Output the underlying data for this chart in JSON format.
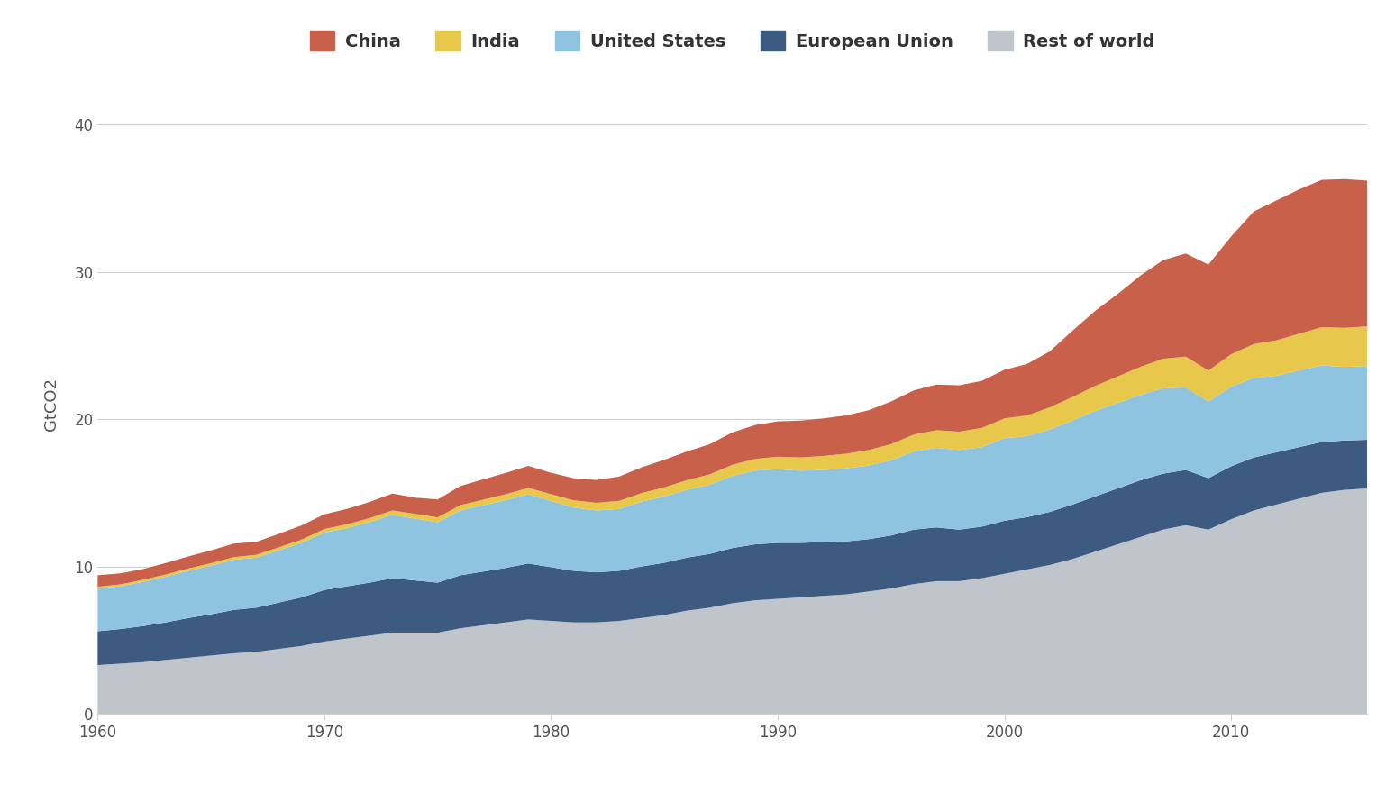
{
  "years": [
    1960,
    1961,
    1962,
    1963,
    1964,
    1965,
    1966,
    1967,
    1968,
    1969,
    1970,
    1971,
    1972,
    1973,
    1974,
    1975,
    1976,
    1977,
    1978,
    1979,
    1980,
    1981,
    1982,
    1983,
    1984,
    1985,
    1986,
    1987,
    1988,
    1989,
    1990,
    1991,
    1992,
    1993,
    1994,
    1995,
    1996,
    1997,
    1998,
    1999,
    2000,
    2001,
    2002,
    2003,
    2004,
    2005,
    2006,
    2007,
    2008,
    2009,
    2010,
    2011,
    2012,
    2013,
    2014,
    2015,
    2016
  ],
  "rest_of_world": [
    3.3,
    3.4,
    3.5,
    3.65,
    3.8,
    3.95,
    4.1,
    4.2,
    4.4,
    4.6,
    4.9,
    5.1,
    5.3,
    5.5,
    5.5,
    5.5,
    5.8,
    6.0,
    6.2,
    6.4,
    6.3,
    6.2,
    6.2,
    6.3,
    6.5,
    6.7,
    7.0,
    7.2,
    7.5,
    7.7,
    7.8,
    7.9,
    8.0,
    8.1,
    8.3,
    8.5,
    8.8,
    9.0,
    9.0,
    9.2,
    9.5,
    9.8,
    10.1,
    10.5,
    11.0,
    11.5,
    12.0,
    12.5,
    12.8,
    12.5,
    13.2,
    13.8,
    14.2,
    14.6,
    15.0,
    15.2,
    15.3
  ],
  "european_union": [
    2.3,
    2.35,
    2.45,
    2.55,
    2.7,
    2.8,
    2.95,
    3.0,
    3.15,
    3.3,
    3.5,
    3.55,
    3.6,
    3.7,
    3.55,
    3.4,
    3.6,
    3.65,
    3.7,
    3.8,
    3.65,
    3.5,
    3.4,
    3.4,
    3.5,
    3.55,
    3.6,
    3.65,
    3.75,
    3.8,
    3.8,
    3.7,
    3.65,
    3.6,
    3.55,
    3.6,
    3.7,
    3.65,
    3.5,
    3.5,
    3.6,
    3.55,
    3.6,
    3.7,
    3.75,
    3.8,
    3.85,
    3.8,
    3.75,
    3.5,
    3.6,
    3.6,
    3.55,
    3.5,
    3.45,
    3.35,
    3.3
  ],
  "united_states": [
    2.9,
    2.9,
    3.0,
    3.1,
    3.2,
    3.3,
    3.4,
    3.4,
    3.55,
    3.7,
    3.9,
    3.95,
    4.1,
    4.3,
    4.2,
    4.1,
    4.4,
    4.5,
    4.6,
    4.7,
    4.5,
    4.3,
    4.2,
    4.2,
    4.4,
    4.5,
    4.6,
    4.7,
    4.9,
    5.0,
    5.0,
    4.9,
    4.9,
    4.95,
    5.0,
    5.1,
    5.3,
    5.4,
    5.4,
    5.4,
    5.6,
    5.5,
    5.6,
    5.7,
    5.8,
    5.8,
    5.8,
    5.8,
    5.6,
    5.2,
    5.4,
    5.4,
    5.2,
    5.2,
    5.2,
    5.0,
    5.0
  ],
  "india": [
    0.12,
    0.13,
    0.14,
    0.15,
    0.16,
    0.17,
    0.18,
    0.19,
    0.2,
    0.22,
    0.24,
    0.26,
    0.28,
    0.3,
    0.32,
    0.33,
    0.36,
    0.38,
    0.4,
    0.43,
    0.46,
    0.49,
    0.52,
    0.55,
    0.58,
    0.62,
    0.66,
    0.7,
    0.75,
    0.8,
    0.85,
    0.9,
    0.95,
    1.0,
    1.05,
    1.1,
    1.15,
    1.2,
    1.25,
    1.3,
    1.35,
    1.4,
    1.5,
    1.6,
    1.7,
    1.8,
    1.9,
    2.0,
    2.1,
    2.1,
    2.2,
    2.3,
    2.4,
    2.5,
    2.6,
    2.65,
    2.7
  ],
  "china": [
    0.78,
    0.75,
    0.73,
    0.78,
    0.82,
    0.87,
    0.92,
    0.88,
    0.92,
    0.97,
    1.0,
    1.05,
    1.1,
    1.15,
    1.1,
    1.22,
    1.3,
    1.38,
    1.45,
    1.5,
    1.45,
    1.5,
    1.55,
    1.65,
    1.75,
    1.87,
    1.95,
    2.05,
    2.2,
    2.3,
    2.4,
    2.5,
    2.55,
    2.6,
    2.7,
    2.9,
    3.0,
    3.1,
    3.15,
    3.2,
    3.3,
    3.5,
    3.8,
    4.5,
    5.1,
    5.6,
    6.2,
    6.7,
    7.0,
    7.2,
    8.0,
    9.0,
    9.5,
    9.8,
    10.0,
    10.1,
    9.9
  ],
  "colors": {
    "china": "#c9614a",
    "india": "#e8c84a",
    "united_states": "#8ec4e0",
    "european_union": "#3d5a80",
    "rest_of_world": "#c0c4cb"
  },
  "legend_labels": [
    "China",
    "India",
    "United States",
    "European Union",
    "Rest of world"
  ],
  "ylabel": "GtCO2",
  "ylim": [
    0,
    42
  ],
  "yticks": [
    0,
    10,
    20,
    30,
    40
  ],
  "xtick_years": [
    1960,
    1970,
    1980,
    1990,
    2000,
    2010
  ],
  "xmin": 1960,
  "xmax": 2016,
  "background_color": "#ffffff",
  "grid_color": "#d0d0d0"
}
